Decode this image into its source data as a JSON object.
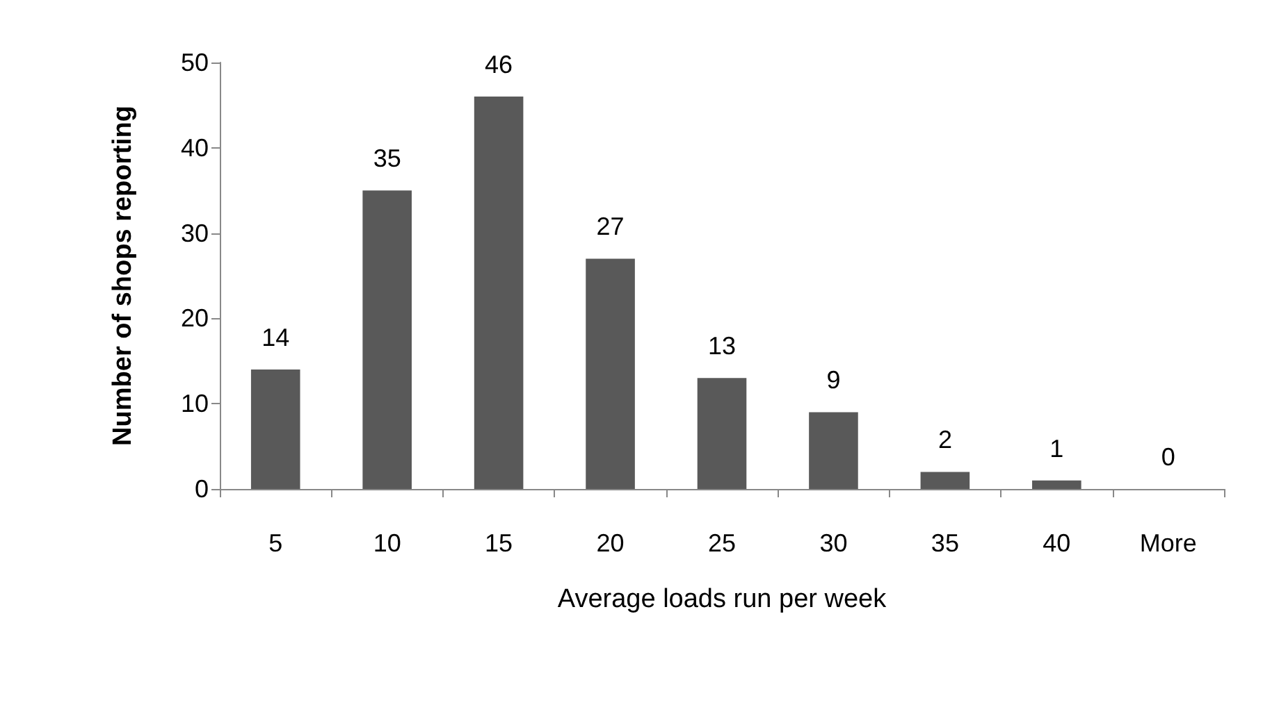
{
  "chart_data": {
    "type": "bar",
    "categories": [
      "5",
      "10",
      "15",
      "20",
      "25",
      "30",
      "35",
      "40",
      "More"
    ],
    "values": [
      14,
      35,
      46,
      27,
      13,
      9,
      2,
      1,
      0
    ],
    "color": "#595959",
    "xlabel": "Average loads run per week",
    "ylabel": "Number of shops reporting",
    "ylim": [
      0,
      50
    ],
    "yticks": [
      0,
      10,
      20,
      30,
      40,
      50
    ],
    "grid": false,
    "data_labels": true
  }
}
